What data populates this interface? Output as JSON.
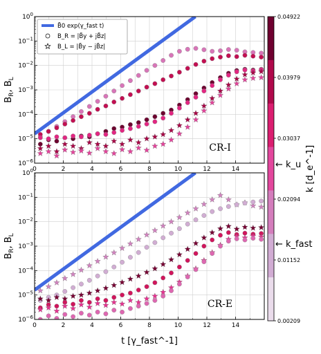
{
  "chart_data": {
    "type": "scatter",
    "xlabel": "t [γ_fast^-1]",
    "ylabel": "B_R, B_L",
    "xlim": [
      0,
      16
    ],
    "ylim": [
      1e-06,
      1
    ],
    "y_scale": "log",
    "x_ticks": [
      "0",
      "2",
      "4",
      "6",
      "8",
      "10",
      "12",
      "14"
    ],
    "y_ticks": [
      "10^-6",
      "10^-5",
      "10^-4",
      "10^-3",
      "10^-2",
      "10^-1",
      "10^0"
    ],
    "grid": true,
    "legend": {
      "placement": "top-left",
      "entries": [
        {
          "label": "B̃0 exp(γ_fast t)",
          "marker": "line",
          "color": "#4169e1"
        },
        {
          "label": "B_R = |B̃y + jB̃z|",
          "marker": "circle"
        },
        {
          "label": "B_L = |B̃y − jB̃z|",
          "marker": "star"
        }
      ]
    },
    "colorbar": {
      "label": "k [d_e^-1]",
      "ticks": [
        "0.04922",
        "0.03979",
        "0.03037",
        "0.02094",
        "0.01152",
        "0.00209"
      ],
      "annotations": [
        "← k_u",
        "← k_fast"
      ],
      "colors": [
        "#fbf4f8",
        "#d9c3de",
        "#c994c7",
        "#df65b0",
        "#e7298a",
        "#ce1256",
        "#91003f",
        "#4c0020"
      ]
    },
    "panels": [
      {
        "label": "CR-I",
        "reference_line": {
          "x": [
            0,
            11.2
          ],
          "y": [
            1.6e-05,
            1
          ]
        },
        "series": [
          {
            "name": "B_R",
            "k_level": 0.02,
            "values": [
              1.2e-05,
              2e-05,
              3.2e-05,
              5e-05,
              8e-05,
              0.00013,
              0.00021,
              0.00034,
              0.00055,
              0.0009,
              0.0015,
              0.0024,
              0.0039,
              0.0063,
              0.01,
              0.016,
              0.026,
              0.038,
              0.046,
              0.05,
              0.044,
              0.038,
              0.04,
              0.045,
              0.042,
              0.036,
              0.034,
              0.032
            ]
          },
          {
            "name": "B_R",
            "k_level": 0.037,
            "values": [
              1.5e-05,
              2e-05,
              2.8e-05,
              4e-05,
              5.6e-05,
              8e-05,
              0.00011,
              0.00016,
              0.00022,
              0.00032,
              0.00045,
              0.00064,
              0.0009,
              0.0013,
              0.0018,
              0.0026,
              0.0037,
              0.0053,
              0.0076,
              0.011,
              0.015,
              0.019,
              0.022,
              0.025,
              0.023,
              0.026,
              0.024,
              0.022
            ]
          },
          {
            "name": "B_R",
            "k_level": 0.046,
            "values": [
              6e-06,
              9e-06,
              8e-06,
              1.1e-05,
              1e-05,
              1.3e-05,
              1.2e-05,
              1.6e-05,
              2e-05,
              2.6e-05,
              3e-05,
              3.8e-05,
              4.6e-05,
              6e-05,
              8e-05,
              0.00011,
              0.00015,
              0.00024,
              0.0004,
              0.0007,
              0.0012,
              0.002,
              0.0032,
              0.0048,
              0.0062,
              0.007,
              0.0065,
              0.007
            ]
          },
          {
            "name": "B_R",
            "k_level": 0.03,
            "values": [
              1.1e-05,
              1e-05,
              1.2e-05,
              1.1e-05,
              1.3e-05,
              1.2e-05,
              1.4e-05,
              1.6e-05,
              1.5e-05,
              1.8e-05,
              2.2e-05,
              2.6e-05,
              3.2e-05,
              4e-05,
              5e-05,
              7e-05,
              0.00011,
              0.00018,
              0.0003,
              0.0005,
              0.0009,
              0.0015,
              0.0026,
              0.004,
              0.0055,
              0.0065,
              0.006,
              0.0068
            ]
          },
          {
            "name": "B_L",
            "k_level": 0.04,
            "values": [
              4e-06,
              5e-06,
              3e-06,
              6e-06,
              5e-06,
              4e-06,
              7e-06,
              6e-06,
              5e-06,
              8e-06,
              6e-06,
              9e-06,
              7e-06,
              1e-05,
              1.2e-05,
              1.5e-05,
              2.2e-05,
              3.5e-05,
              6e-05,
              0.00011,
              0.00022,
              0.00045,
              0.0009,
              0.0016,
              0.0028,
              0.0042,
              0.005,
              0.0056
            ]
          },
          {
            "name": "B_L",
            "k_level": 0.026,
            "values": [
              2.5e-06,
              3e-06,
              2e-06,
              3.5e-06,
              2.8e-06,
              3.2e-06,
              2.6e-06,
              4e-06,
              3e-06,
              2.5e-06,
              3.6e-06,
              3e-06,
              4.2e-06,
              3.4e-06,
              5e-06,
              6e-06,
              9e-06,
              1.6e-05,
              3e-05,
              6e-05,
              0.00014,
              0.0003,
              0.0006,
              0.0011,
              0.0018,
              0.0026,
              0.003,
              0.0032
            ]
          }
        ]
      },
      {
        "label": "CR-E",
        "reference_line": {
          "x": [
            0,
            11.2
          ],
          "y": [
            1.6e-05,
            1
          ]
        },
        "series": [
          {
            "name": "B_L",
            "k_level": 0.018,
            "values": [
              1.5e-05,
              2.2e-05,
              3.2e-05,
              4.8e-05,
              7e-05,
              0.000105,
              0.00016,
              0.00024,
              0.00036,
              0.00054,
              0.00082,
              0.00125,
              0.0019,
              0.0029,
              0.0044,
              0.0067,
              0.01,
              0.015,
              0.023,
              0.034,
              0.052,
              0.08,
              0.12,
              0.08,
              0.05,
              0.06,
              0.045,
              0.04
            ]
          },
          {
            "name": "B_R",
            "k_level": 0.012,
            "values": [
              6e-06,
              8e-06,
              1e-05,
              1.4e-05,
              2e-05,
              2.8e-05,
              4e-05,
              6e-05,
              9e-05,
              0.00014,
              0.00022,
              0.00035,
              0.00055,
              0.0009,
              0.0014,
              0.0022,
              0.0034,
              0.0052,
              0.008,
              0.012,
              0.018,
              0.026,
              0.034,
              0.042,
              0.05,
              0.058,
              0.064,
              0.07
            ]
          },
          {
            "name": "B_L",
            "k_level": 0.045,
            "values": [
              7e-06,
              6e-06,
              8e-06,
              7e-06,
              9e-06,
              1e-05,
              1.2e-05,
              1.5e-05,
              1.9e-05,
              2.5e-05,
              3.3e-05,
              4.5e-05,
              6e-05,
              8.5e-05,
              0.00012,
              0.00018,
              0.00028,
              0.00045,
              0.00075,
              0.0013,
              0.0022,
              0.0036,
              0.0052,
              0.0065,
              0.005,
              0.006,
              0.0055,
              0.0058
            ]
          },
          {
            "name": "B_R",
            "k_level": 0.035,
            "values": [
              3e-06,
              4e-06,
              3.5e-06,
              5e-06,
              4.2e-06,
              6e-06,
              5e-06,
              7e-06,
              6e-06,
              8e-06,
              1e-05,
              1.2e-05,
              1.6e-05,
              2.2e-05,
              3.2e-05,
              5e-05,
              8e-05,
              0.00014,
              0.00026,
              0.0005,
              0.001,
              0.0018,
              0.0028,
              0.0036,
              0.003,
              0.0034,
              0.0031,
              0.0033
            ]
          },
          {
            "name": "B_L",
            "k_level": 0.028,
            "values": [
              2.5e-06,
              3e-06,
              2.2e-06,
              3.5e-06,
              2.8e-06,
              4e-06,
              3.2e-06,
              4.5e-06,
              3.8e-06,
              5e-06,
              4.3e-06,
              6e-06,
              5e-06,
              7e-06,
              9e-06,
              1.3e-05,
              2e-05,
              3.4e-05,
              6e-05,
              0.00012,
              0.00026,
              0.00055,
              0.0011,
              0.0019,
              0.0025,
              0.0022,
              0.0026,
              0.0024
            ]
          },
          {
            "name": "B_R",
            "k_level": 0.022,
            "values": [
              1e-06,
              1.4e-06,
              1.1e-06,
              1.6e-06,
              1.3e-06,
              1.8e-06,
              1.5e-06,
              2e-06,
              1.7e-06,
              2.4e-06,
              2e-06,
              2.8e-06,
              3.5e-06,
              4.5e-06,
              6e-06,
              9e-06,
              1.5e-05,
              2.8e-05,
              5.5e-05,
              0.00011,
              0.00023,
              0.0005,
              0.001,
              0.0016,
              0.002,
              0.0018,
              0.0021,
              0.0019
            ]
          }
        ]
      }
    ]
  }
}
